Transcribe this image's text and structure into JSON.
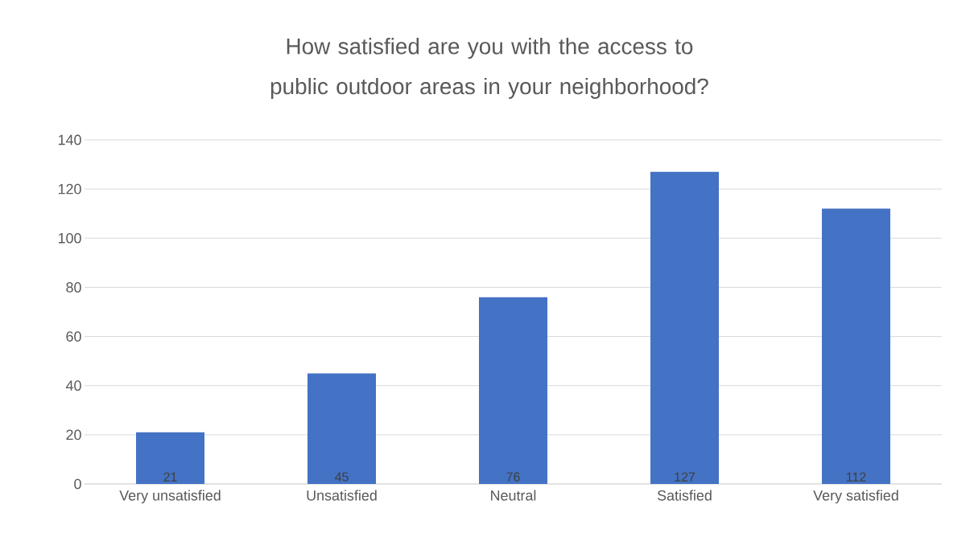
{
  "chart_data": {
    "type": "bar",
    "title": "How satisfied are you with the access to public outdoor areas in your neighborhood?",
    "categories": [
      "Very unsatisfied",
      "Unsatisfied",
      "Neutral",
      "Satisfied",
      "Very satisfied"
    ],
    "values": [
      21,
      45,
      76,
      127,
      112
    ],
    "color": "#4472c4",
    "ylim": [
      0,
      140
    ],
    "yticks": [
      0,
      20,
      40,
      60,
      80,
      100,
      120,
      140
    ],
    "grid": "y",
    "data_labels": true
  }
}
